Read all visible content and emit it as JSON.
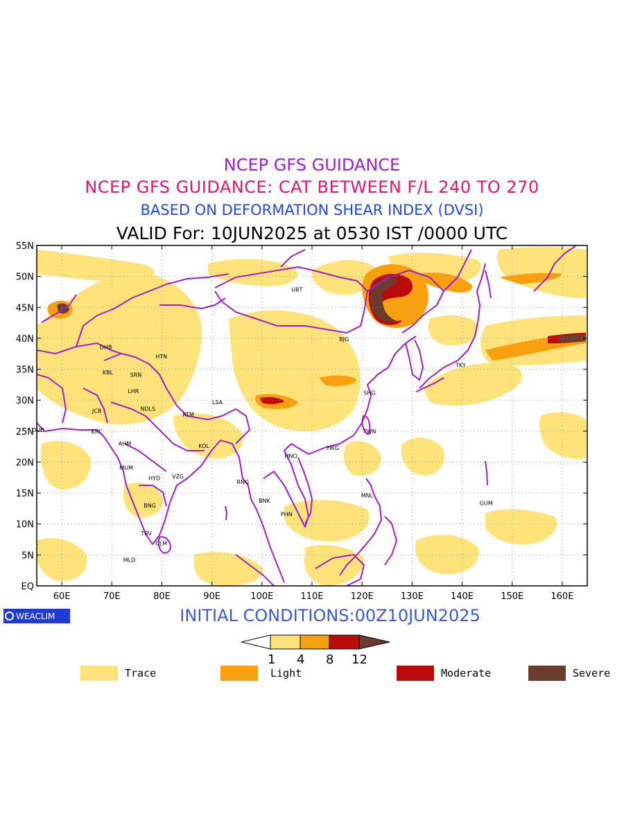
{
  "titles": {
    "line1": "NCEP GFS GUIDANCE",
    "line2": "NCEP GFS GUIDANCE: CAT BETWEEN F/L 240 TO 270",
    "line3": "BASED ON DEFORMATION SHEAR INDEX (DVSI)",
    "line4": "VALID For: 10JUN2025 at 0530 IST /0000 UTC"
  },
  "colors": {
    "line1": "#9b1fd6",
    "line2": "#e0156d",
    "line3": "#2448e6",
    "line4": "#000000",
    "boundary": "#a020c8",
    "trace": "#fde37a",
    "light": "#fa9f0e",
    "moderate": "#bb0a0a",
    "severe": "#6b3b2e"
  },
  "map": {
    "lon_range": [
      55,
      165
    ],
    "lat_range": [
      0,
      55
    ],
    "lon_ticks": [
      "60E",
      "70E",
      "80E",
      "90E",
      "100E",
      "110E",
      "120E",
      "130E",
      "140E",
      "150E",
      "160E"
    ],
    "lat_ticks": [
      "EQ",
      "5N",
      "10N",
      "15N",
      "20N",
      "25N",
      "30N",
      "35N",
      "40N",
      "45N",
      "50N",
      "55N"
    ],
    "cities": [
      {
        "code": "UBT",
        "lon": 107,
        "lat": 47.9
      },
      {
        "code": "BJG",
        "lon": 116.4,
        "lat": 39.9
      },
      {
        "code": "TKY",
        "lon": 139.7,
        "lat": 35.7
      },
      {
        "code": "SHG",
        "lon": 121.5,
        "lat": 31.2
      },
      {
        "code": "TWN",
        "lon": 121.5,
        "lat": 25
      },
      {
        "code": "HKG",
        "lon": 114.2,
        "lat": 22.3
      },
      {
        "code": "HNO",
        "lon": 105.8,
        "lat": 21
      },
      {
        "code": "DHB",
        "lon": 68.8,
        "lat": 38.6
      },
      {
        "code": "HTN",
        "lon": 79.9,
        "lat": 37.1
      },
      {
        "code": "KBL",
        "lon": 69.2,
        "lat": 34.5
      },
      {
        "code": "SRN",
        "lon": 74.8,
        "lat": 34.1
      },
      {
        "code": "LHR",
        "lon": 74.3,
        "lat": 31.5
      },
      {
        "code": "NDLS",
        "lon": 77.2,
        "lat": 28.6
      },
      {
        "code": "JCB",
        "lon": 67,
        "lat": 28.3
      },
      {
        "code": "KTM",
        "lon": 85.3,
        "lat": 27.7
      },
      {
        "code": "LSA",
        "lon": 91.1,
        "lat": 29.7
      },
      {
        "code": "DUB",
        "lon": 55.3,
        "lat": 25.2
      },
      {
        "code": "KRC",
        "lon": 67,
        "lat": 24.9
      },
      {
        "code": "AHM",
        "lon": 72.6,
        "lat": 23
      },
      {
        "code": "KOL",
        "lon": 88.4,
        "lat": 22.6
      },
      {
        "code": "MUM",
        "lon": 72.9,
        "lat": 19.1
      },
      {
        "code": "HYD",
        "lon": 78.5,
        "lat": 17.4
      },
      {
        "code": "VZG",
        "lon": 83.2,
        "lat": 17.7
      },
      {
        "code": "RNG",
        "lon": 96.2,
        "lat": 16.8
      },
      {
        "code": "BNK",
        "lon": 100.5,
        "lat": 13.8
      },
      {
        "code": "PHN",
        "lon": 104.9,
        "lat": 11.6
      },
      {
        "code": "MNL",
        "lon": 121,
        "lat": 14.6
      },
      {
        "code": "GUM",
        "lon": 144.8,
        "lat": 13.4
      },
      {
        "code": "BNG",
        "lon": 77.6,
        "lat": 13
      },
      {
        "code": "TRV",
        "lon": 76.9,
        "lat": 8.5
      },
      {
        "code": "CLM",
        "lon": 79.9,
        "lat": 6.9
      },
      {
        "code": "MLD",
        "lon": 73.5,
        "lat": 4.2
      }
    ]
  },
  "logo": {
    "text": "WEACLIM"
  },
  "footer": {
    "initial_conditions": "INITIAL CONDITIONS:00Z10JUN2025"
  },
  "colorbar": {
    "values": [
      "1",
      "4",
      "8",
      "12"
    ]
  },
  "legend": [
    {
      "label": "Trace",
      "color": "#fde37a"
    },
    {
      "label": "Light",
      "color": "#fa9f0e"
    },
    {
      "label": "Moderate",
      "color": "#bb0a0a"
    },
    {
      "label": "Severe",
      "color": "#6b3b2e"
    }
  ]
}
